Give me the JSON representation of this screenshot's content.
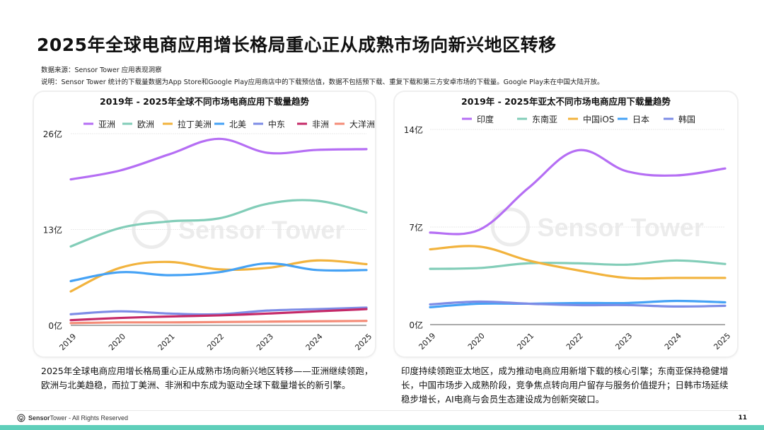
{
  "title": "2025年全球电商应用增长格局重心正从成熟市场向新兴地区转移",
  "source": "数据来源：Sensor Tower 应用表现洞察",
  "note": "说明：Sensor Tower 统计的下载量数据为App Store和Google Play应用商店中的下载预估值，数据不包括预下载、重复下载和第三方安卓市场的下载量。Google Play未在中国大陆开放。",
  "watermark": "Sensor Tower",
  "chart_data": [
    {
      "type": "line",
      "title": "2019年 - 2025年全球不同市场电商应用下载量趋势",
      "categories": [
        "2019",
        "2020",
        "2021",
        "2022",
        "2023",
        "2024",
        "2025"
      ],
      "ylim": [
        0,
        26
      ],
      "yticks": [
        0,
        13,
        26
      ],
      "ytick_labels": [
        "0亿",
        "13亿",
        "26亿"
      ],
      "unit": "亿",
      "legend": "top",
      "grid": true,
      "series": [
        {
          "name": "亚洲",
          "color": "#b56ef4",
          "values": [
            19.8,
            21.0,
            23.2,
            25.3,
            23.4,
            23.8,
            23.9
          ]
        },
        {
          "name": "欧洲",
          "color": "#82cdb8",
          "values": [
            10.7,
            13.2,
            14.1,
            14.5,
            16.5,
            16.9,
            15.3
          ]
        },
        {
          "name": "拉丁美洲",
          "color": "#f2b33d",
          "values": [
            4.6,
            7.8,
            8.6,
            7.6,
            7.8,
            8.8,
            8.3
          ]
        },
        {
          "name": "北美",
          "color": "#45a2f5",
          "values": [
            6.0,
            7.2,
            6.8,
            7.2,
            8.4,
            7.5,
            7.5
          ]
        },
        {
          "name": "中东",
          "color": "#7d8ce6",
          "values": [
            1.5,
            1.9,
            1.6,
            1.5,
            2.0,
            2.2,
            2.4
          ]
        },
        {
          "name": "非洲",
          "color": "#c52a68",
          "values": [
            0.7,
            1.0,
            1.2,
            1.35,
            1.6,
            1.9,
            2.2
          ]
        },
        {
          "name": "大洋洲",
          "color": "#f48c78",
          "values": [
            0.3,
            0.4,
            0.4,
            0.45,
            0.5,
            0.55,
            0.6
          ]
        }
      ]
    },
    {
      "type": "line",
      "title": "2019年 - 2025年亚太不同市场电商应用下载量趋势",
      "categories": [
        "2019",
        "2020",
        "2021",
        "2022",
        "2023",
        "2024",
        "2025"
      ],
      "ylim": [
        0,
        14
      ],
      "yticks": [
        0,
        7,
        14
      ],
      "ytick_labels": [
        "0亿",
        "7亿",
        "14亿"
      ],
      "unit": "亿",
      "legend": "top",
      "grid": true,
      "series": [
        {
          "name": "印度",
          "color": "#b56ef4",
          "values": [
            6.6,
            6.8,
            9.8,
            12.5,
            11.0,
            10.7,
            11.2
          ]
        },
        {
          "name": "东南亚",
          "color": "#82cdb8",
          "values": [
            4.0,
            4.06,
            4.4,
            4.4,
            4.3,
            4.6,
            4.35
          ]
        },
        {
          "name": "中国iOS",
          "color": "#f2b33d",
          "values": [
            5.4,
            5.6,
            4.6,
            3.9,
            3.35,
            3.35,
            3.35
          ]
        },
        {
          "name": "日本",
          "color": "#45a2f5",
          "values": [
            1.25,
            1.5,
            1.5,
            1.55,
            1.55,
            1.7,
            1.6
          ]
        },
        {
          "name": "韩国",
          "color": "#7d8ce6",
          "values": [
            1.45,
            1.65,
            1.5,
            1.4,
            1.4,
            1.3,
            1.35
          ]
        }
      ]
    }
  ],
  "left_description": "2025年全球电商应用增长格局重心正从成熟市场向新兴地区转移——亚洲继续领跑，欧洲与北美趋稳，而拉丁美洲、非洲和中东成为驱动全球下载量增长的新引擎。",
  "right_description": "印度持续领跑亚太地区，成为推动电商应用新增下载的核心引擎；东南亚保持稳健增长，中国市场步入成熟阶段，竞争焦点转向用户留存与服务价值提升；日韩市场延续稳步增长，AI电商与会员生态建设成为创新突破口。",
  "footer": {
    "brand_sensor": "Sensor",
    "brand_tower": "Tower",
    "rights": " - All Rights Reserved",
    "page": "11"
  }
}
